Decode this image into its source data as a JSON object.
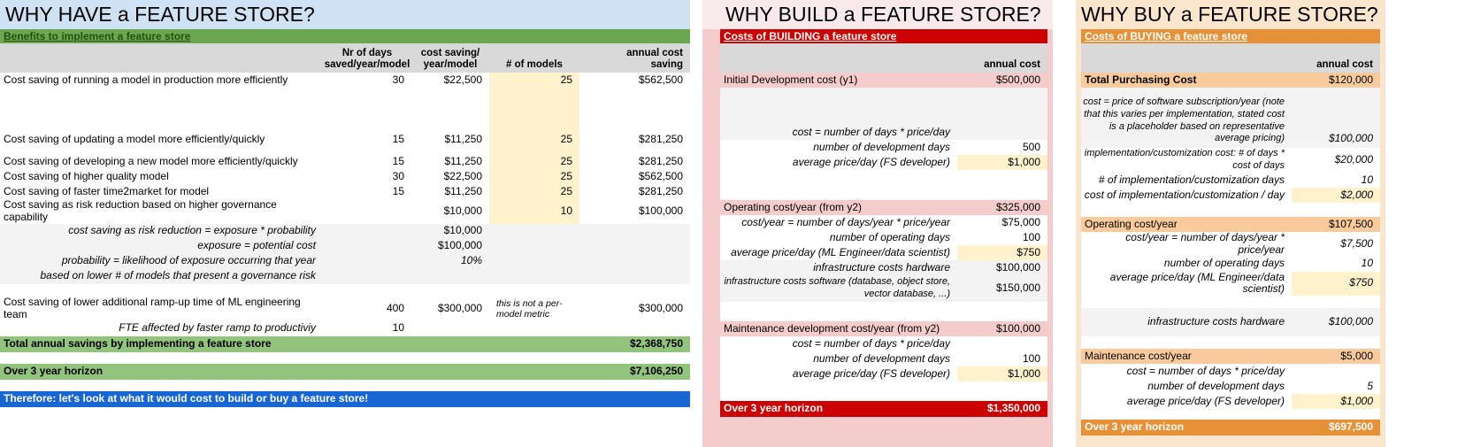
{
  "colors": {
    "title_blue": "#cfe2f3",
    "banner_green": "#6aa84f",
    "total_green": "#93c47d",
    "callout_blue": "#1766d2",
    "banner_red": "#cc0000",
    "pink_bg": "#f4cccc",
    "banner_orange": "#e69138",
    "peach_bg": "#fce5cd",
    "peach_row": "#f9cb9c",
    "highlight_yellow": "#fff2cc",
    "header_gray": "#d9d9d9",
    "block_gray": "#f3f3f3"
  },
  "have": {
    "title": "WHY HAVE a FEATURE STORE?",
    "banner": "Benefits to implement a feature store",
    "headers": {
      "days": "Nr of days\nsaved/year/model",
      "saving": "cost saving/\nyear/model",
      "models": "# of models",
      "annual": "annual cost\nsaving"
    },
    "rows": [
      {
        "label": "Cost saving of running a model in production more efficiently",
        "days": "30",
        "save": "$22,500",
        "models": "25",
        "annual": "$562,500"
      },
      {
        "label": "Cost saving of updating a model more efficiently/quickly",
        "days": "15",
        "save": "$11,250",
        "models": "25",
        "annual": "$281,250"
      },
      {
        "label": "Cost saving of developing a new model more efficiently/quickly",
        "days": "15",
        "save": "$11,250",
        "models": "25",
        "annual": "$281,250"
      },
      {
        "label": "Cost saving of higher quality model",
        "days": "30",
        "save": "$22,500",
        "models": "25",
        "annual": "$562,500"
      },
      {
        "label": "Cost saving of faster time2market for model",
        "days": "15",
        "save": "$11,250",
        "models": "25",
        "annual": "$281,250"
      },
      {
        "label": "Cost saving as risk reduction based on higher governance capability",
        "save": "$10,000",
        "models": "10",
        "annual": "$100,000"
      },
      {
        "label": "cost saving as risk reduction = exposure * probability",
        "save": "$10,000"
      },
      {
        "label": "exposure = potential cost",
        "save": "$100,000"
      },
      {
        "label": "probability = likelihood of exposure occurring that year",
        "save": "10%"
      },
      {
        "label": "based on lower # of models that present a governance risk"
      },
      {
        "label": "Cost saving of lower additional ramp-up time of ML engineering team",
        "days": "400",
        "save": "$300,000",
        "note": "this is not a per-model metric",
        "annual": "$300,000"
      },
      {
        "label": "FTE affected by faster ramp to productiviy",
        "days": "10"
      }
    ],
    "total": {
      "label": "Total annual savings by implementing a feature store",
      "value": "$2,368,750"
    },
    "horizon": {
      "label": "Over 3 year horizon",
      "value": "$7,106,250"
    },
    "therefore": "Therefore: let's look at what it would cost to build or buy a feature store!"
  },
  "build": {
    "title": "WHY BUILD a FEATURE STORE?",
    "banner": "Costs of BUILDING a feature store",
    "header": "annual cost",
    "rows": [
      {
        "label": "Initial Development cost (y1)",
        "value": "$500,000"
      },
      {
        "label": "cost = number of days * price/day",
        "value": ""
      },
      {
        "label": "number of development days",
        "value": "500"
      },
      {
        "label": "average price/day (FS developer)",
        "value": "$1,000"
      },
      {
        "label": "Operating cost/year (from y2)",
        "value": "$325,000"
      },
      {
        "label": "cost/year = number of days/year * price/year",
        "value": "$75,000"
      },
      {
        "label": "number of operating days",
        "value": "100"
      },
      {
        "label": "average price/day (ML Engineer/data scientist)",
        "value": "$750"
      },
      {
        "label": "infrastructure costs hardware",
        "value": "$100,000"
      },
      {
        "label": "infrastructure costs software (database, object store, vector database, ...)",
        "value": "$150,000"
      },
      {
        "label": "Maintenance development cost/year (from y2)",
        "value": "$100,000"
      },
      {
        "label": "cost = number of days * price/day",
        "value": ""
      },
      {
        "label": "number of development days",
        "value": "100"
      },
      {
        "label": "average price/day (FS developer)",
        "value": "$1,000"
      }
    ],
    "footer": {
      "label": "Over 3 year horizon",
      "value": "$1,350,000"
    }
  },
  "buy": {
    "title": "WHY BUY a FEATURE STORE?",
    "banner": "Costs of BUYING a feature store",
    "header": "annual cost",
    "rows": [
      {
        "label": "Total Purchasing Cost",
        "value": "$120,000"
      },
      {
        "label": "cost = price of software subscription/year (note that this varies per implementation, stated cost is a placeholder based on representative average pricing)",
        "value": "$100,000"
      },
      {
        "label": "implementation/customization cost: # of days * cost of days",
        "value": "$20,000"
      },
      {
        "label": "# of implementation/customization days",
        "value": "10"
      },
      {
        "label": "cost of implementation/customization / day",
        "value": "$2,000"
      },
      {
        "label": "Operating cost/year",
        "value": "$107,500"
      },
      {
        "label": "cost/year = number of days/year * price/year",
        "value": "$7,500"
      },
      {
        "label": "number of operating days",
        "value": "10"
      },
      {
        "label": "average price/day (ML Engineer/data scientist)",
        "value": "$750"
      },
      {
        "label": "infrastructure costs hardware",
        "value": "$100,000"
      },
      {
        "label": "Maintenance cost/year",
        "value": "$5,000"
      },
      {
        "label": "cost = number of days * price/day",
        "value": ""
      },
      {
        "label": "number of development days",
        "value": "5"
      },
      {
        "label": "average price/day (FS developer)",
        "value": "$1,000"
      }
    ],
    "footer": {
      "label": "Over 3 year horizon",
      "value": "$697,500"
    }
  }
}
